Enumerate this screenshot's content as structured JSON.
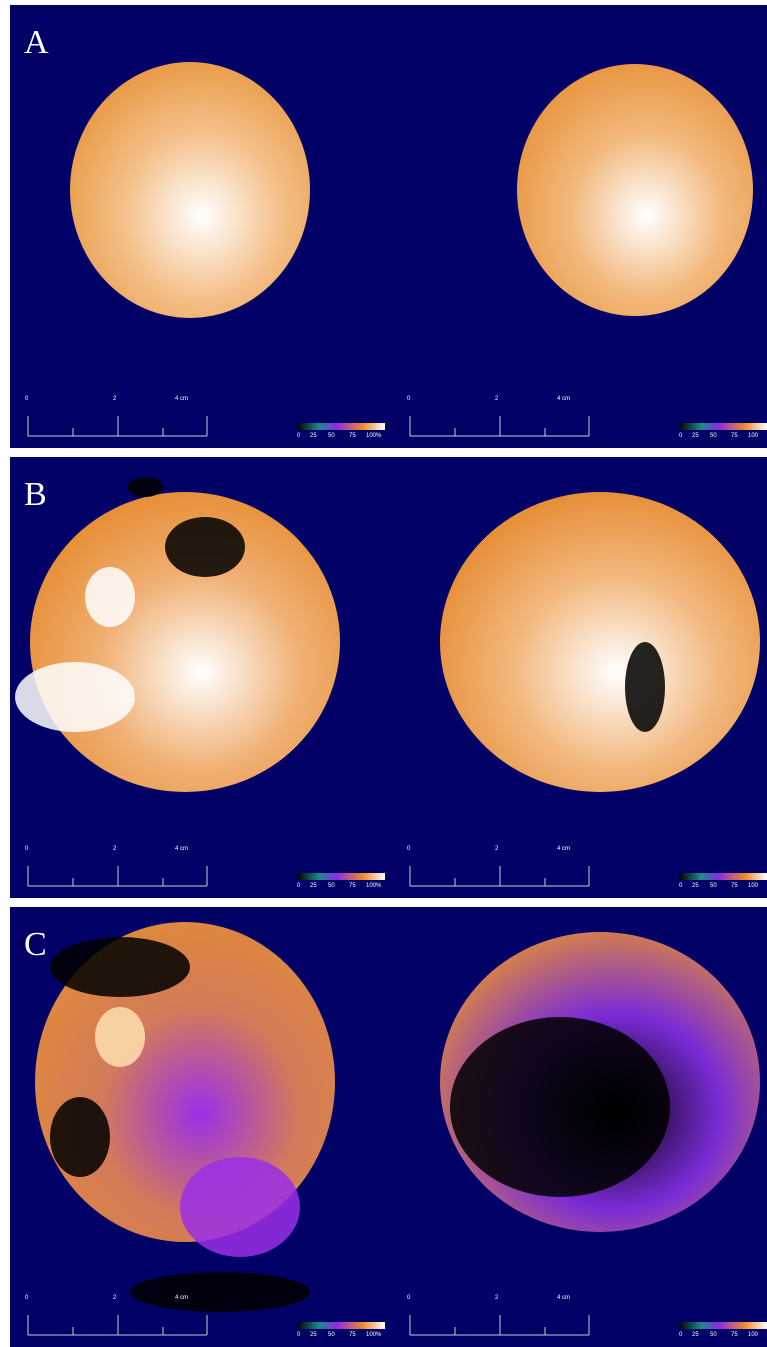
{
  "panels": [
    {
      "label": "A",
      "views": [
        {
          "scale_labels": [
            "0",
            "2",
            "4 cm"
          ],
          "colorbar_labels": [
            "0",
            "25",
            "50",
            "75",
            "100%"
          ]
        },
        {
          "scale_labels": [
            "0",
            "2",
            "4 cm"
          ],
          "colorbar_labels": [
            "0",
            "25",
            "50",
            "75",
            "100"
          ]
        }
      ]
    },
    {
      "label": "B",
      "views": [
        {
          "scale_labels": [
            "0",
            "2",
            "4 cm"
          ],
          "colorbar_labels": [
            "0",
            "25",
            "50",
            "75",
            "100%"
          ]
        },
        {
          "scale_labels": [
            "0",
            "2",
            "4 cm"
          ],
          "colorbar_labels": [
            "0",
            "25",
            "50",
            "75",
            "100"
          ]
        }
      ]
    },
    {
      "label": "C",
      "views": [
        {
          "scale_labels": [
            "0",
            "2",
            "4 cm"
          ],
          "colorbar_labels": [
            "0",
            "25",
            "50",
            "75",
            "100%"
          ]
        },
        {
          "scale_labels": [
            "0",
            "2",
            "4 cm"
          ],
          "colorbar_labels": [
            "0",
            "25",
            "50",
            "75",
            "100"
          ]
        }
      ]
    }
  ]
}
